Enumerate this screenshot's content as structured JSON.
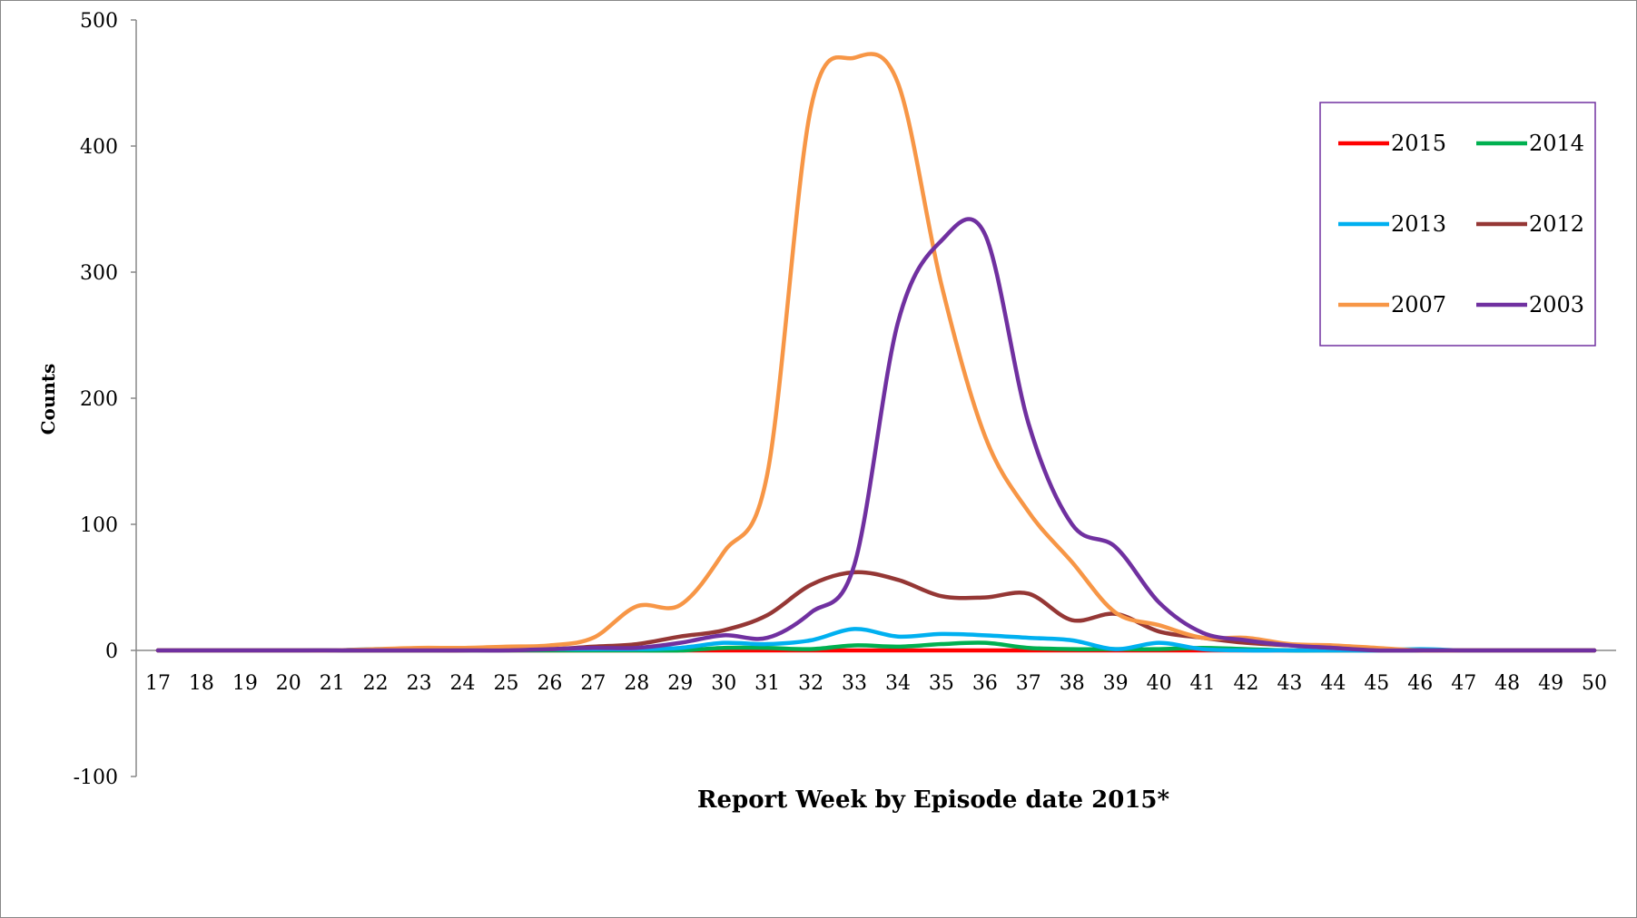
{
  "chart_data": {
    "type": "line",
    "title": "",
    "xlabel": "Report Week by Episode date 2015*",
    "ylabel": "Counts",
    "ylim": [
      -100,
      500
    ],
    "yticks": [
      -100,
      0,
      100,
      200,
      300,
      400,
      500
    ],
    "grid": false,
    "legend_position": "top-right",
    "categories": [
      17,
      18,
      19,
      20,
      21,
      22,
      23,
      24,
      25,
      26,
      27,
      28,
      29,
      30,
      31,
      32,
      33,
      34,
      35,
      36,
      37,
      38,
      39,
      40,
      41,
      42,
      43,
      44,
      45,
      46,
      47,
      48,
      49,
      50
    ],
    "series": [
      {
        "name": "2015",
        "color": "#ff0000",
        "values": [
          0,
          0,
          0,
          0,
          0,
          0,
          0,
          0,
          0,
          0,
          0,
          0,
          0,
          0,
          0,
          0,
          0,
          0,
          0,
          0,
          0,
          0,
          0,
          0,
          0,
          0,
          0,
          0,
          0,
          0,
          0,
          0,
          0,
          0
        ]
      },
      {
        "name": "2014",
        "color": "#00b050",
        "values": [
          0,
          0,
          0,
          0,
          0,
          0,
          0,
          0,
          0,
          0,
          0,
          0,
          0,
          2,
          2,
          1,
          4,
          3,
          5,
          6,
          2,
          1,
          1,
          1,
          2,
          1,
          0,
          0,
          0,
          0,
          0,
          0,
          0,
          0
        ]
      },
      {
        "name": "2013",
        "color": "#00b0f0",
        "values": [
          0,
          0,
          0,
          0,
          0,
          1,
          1,
          1,
          1,
          1,
          1,
          1,
          2,
          6,
          5,
          8,
          17,
          11,
          13,
          12,
          10,
          8,
          1,
          6,
          1,
          0,
          0,
          0,
          0,
          1,
          0,
          0,
          0,
          0
        ]
      },
      {
        "name": "2012",
        "color": "#953735",
        "values": [
          0,
          0,
          0,
          0,
          0,
          0,
          0,
          0,
          1,
          1,
          3,
          5,
          11,
          16,
          28,
          52,
          62,
          56,
          43,
          42,
          45,
          24,
          29,
          15,
          10,
          6,
          4,
          2,
          1,
          0,
          0,
          0,
          0,
          0
        ]
      },
      {
        "name": "2007",
        "color": "#f79646",
        "values": [
          0,
          0,
          0,
          0,
          0,
          1,
          2,
          2,
          3,
          4,
          10,
          35,
          36,
          78,
          140,
          430,
          470,
          450,
          290,
          170,
          110,
          70,
          30,
          20,
          10,
          10,
          5,
          4,
          2,
          0,
          0,
          0,
          0,
          0
        ]
      },
      {
        "name": "2003",
        "color": "#7030a0",
        "values": [
          0,
          0,
          0,
          0,
          0,
          0,
          0,
          0,
          0,
          1,
          2,
          2,
          6,
          12,
          10,
          30,
          68,
          260,
          325,
          330,
          180,
          100,
          82,
          38,
          14,
          8,
          4,
          2,
          0,
          0,
          0,
          0,
          0,
          0
        ]
      }
    ]
  }
}
